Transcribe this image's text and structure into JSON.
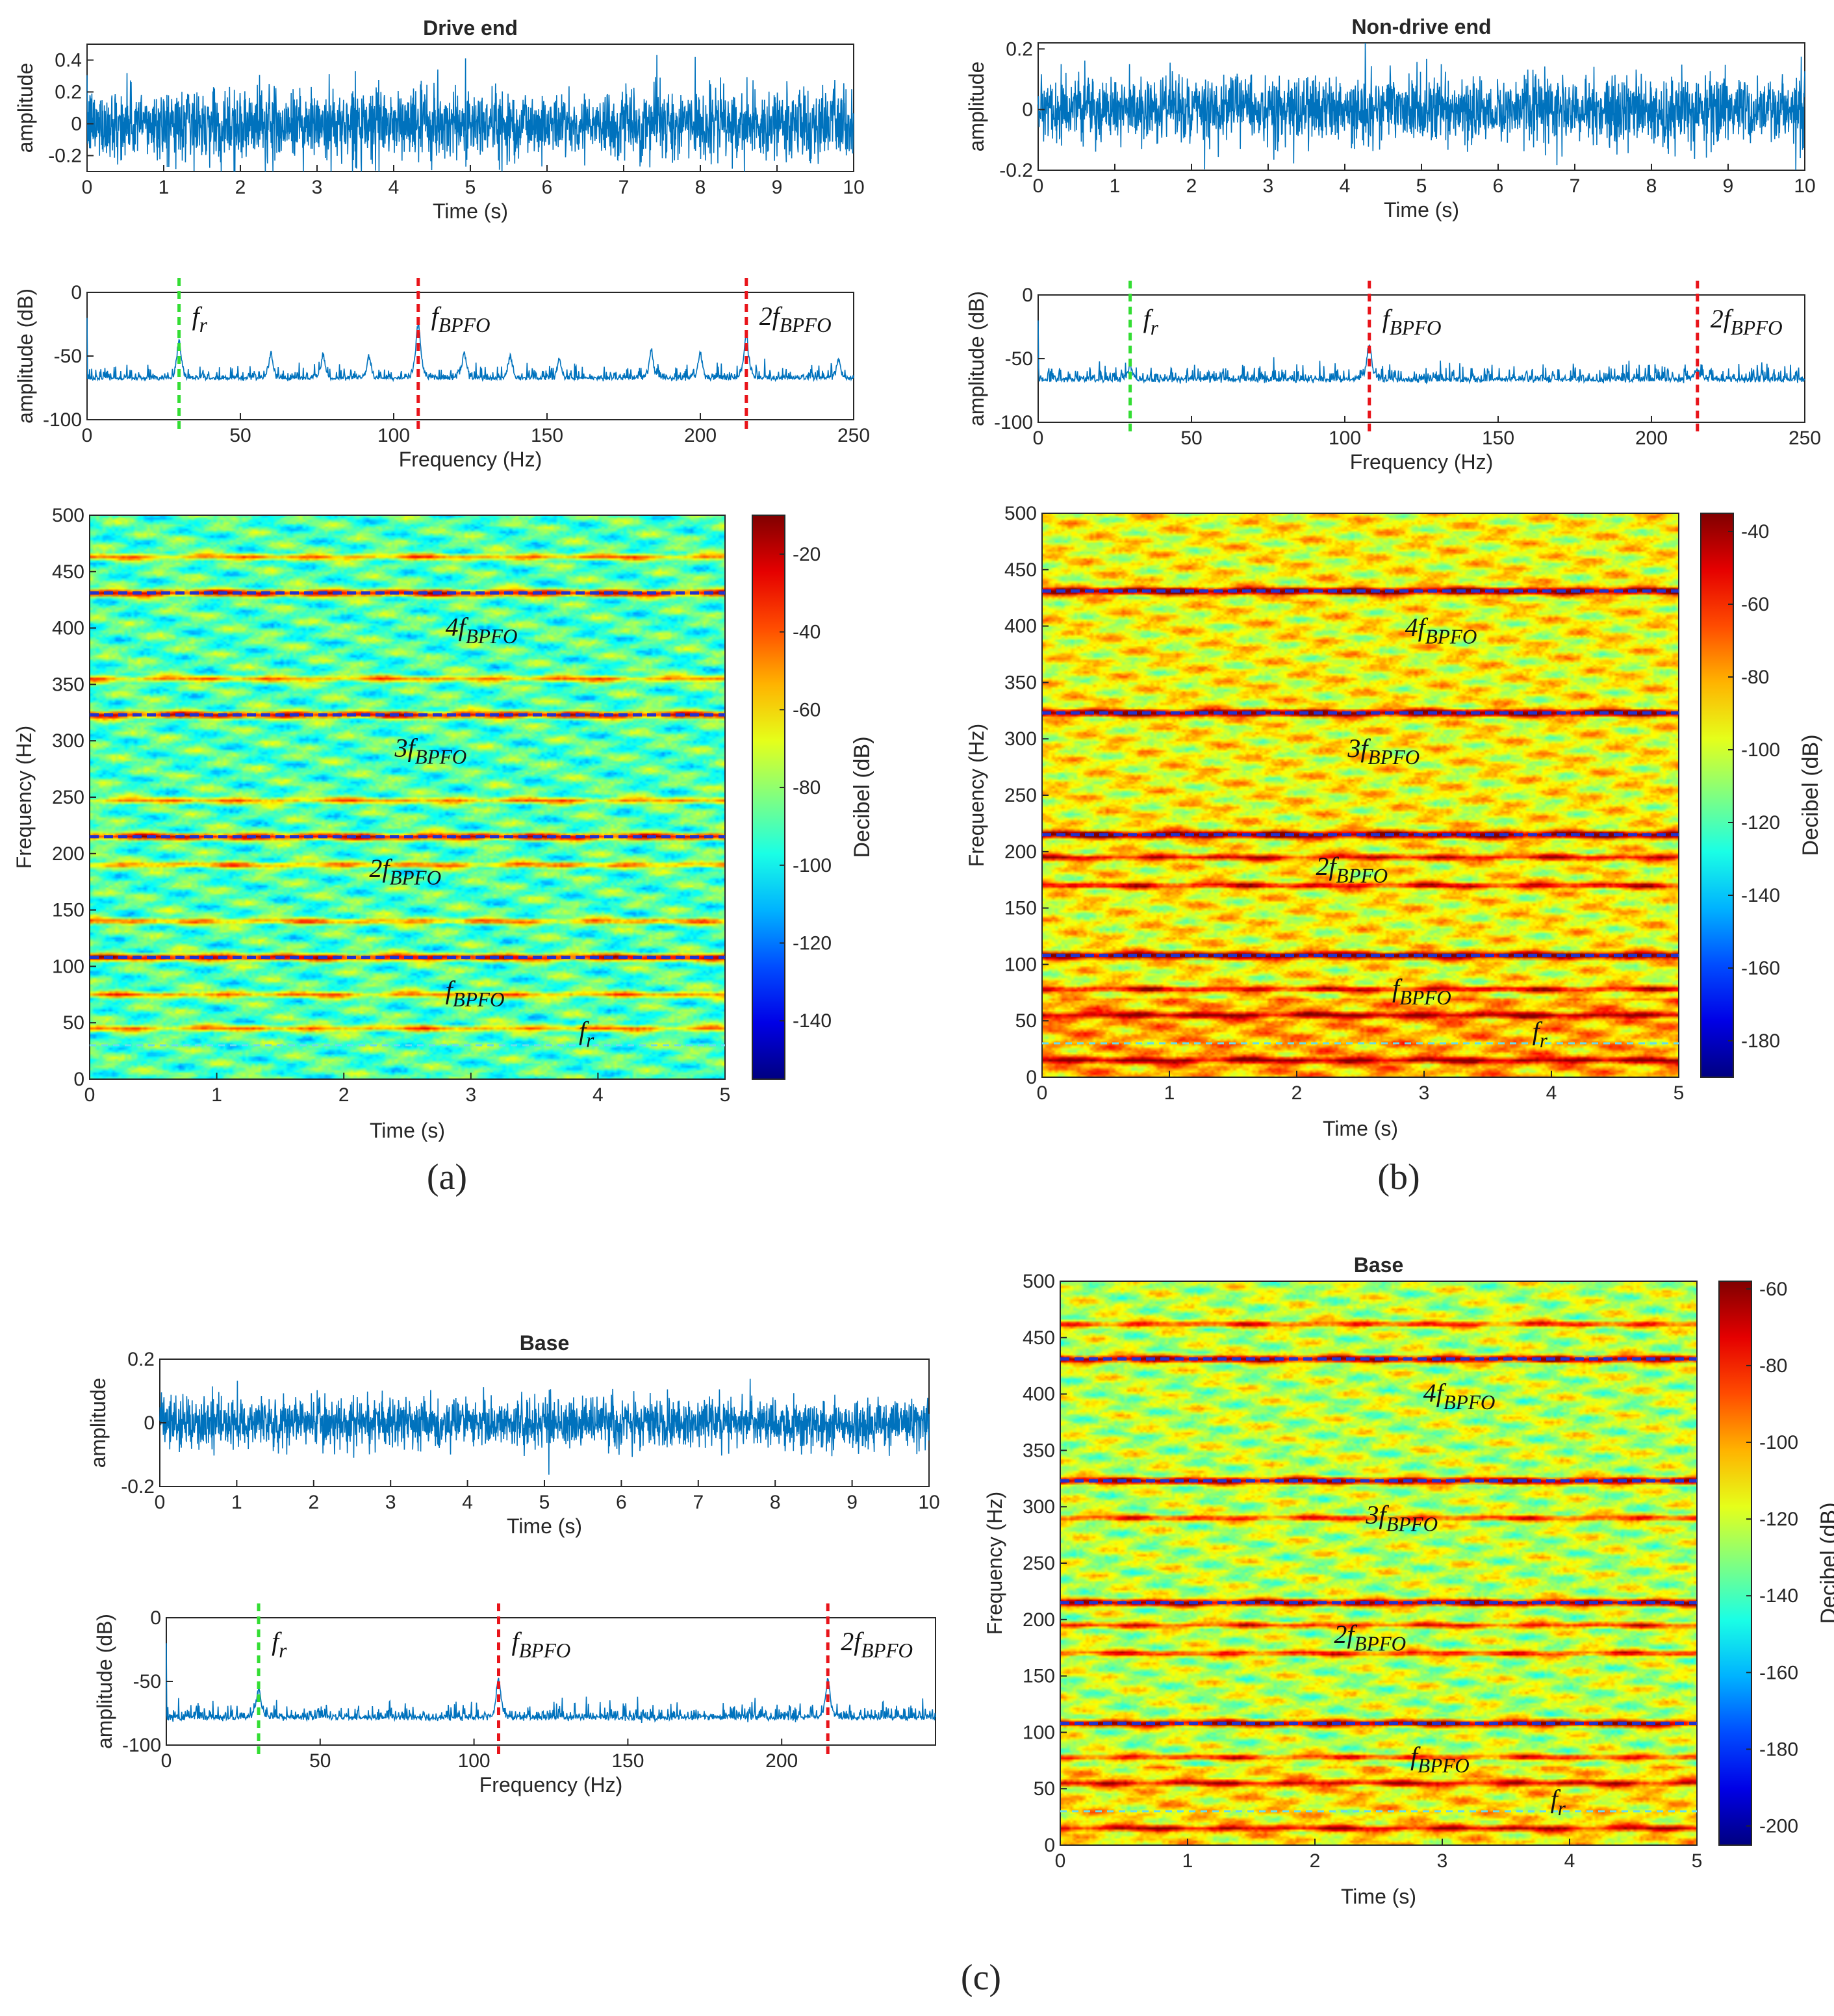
{
  "colors": {
    "signal": "#0072bd",
    "fr_marker": "#33dd33",
    "bpfo_marker": "#e8141a",
    "spec_line": "#2233cc",
    "fr_spec_line": "#66ddee",
    "axis": "#262626"
  },
  "panels": [
    {
      "id": "a",
      "label": "(a)",
      "time": {
        "title": "Drive end",
        "xlabel": "Time (s)",
        "ylabel": "amplitude",
        "xlim": [
          0,
          10
        ],
        "ylim": [
          -0.3,
          0.5
        ],
        "xticks": [
          "0",
          "1",
          "2",
          "3",
          "4",
          "5",
          "6",
          "7",
          "8",
          "9",
          "10"
        ],
        "yticks": [
          "-0.2",
          "0",
          "0.2",
          "0.4"
        ],
        "ytick_values": [
          -0.2,
          0,
          0.2,
          0.4
        ],
        "noise_amp": 0.2
      },
      "spectrum": {
        "title": "",
        "xlabel": "Frequency (Hz)",
        "ylabel": "amplitude (dB)",
        "xlim": [
          0,
          250
        ],
        "ylim": [
          -100,
          0
        ],
        "xticks": [
          "0",
          "50",
          "100",
          "150",
          "200",
          "250"
        ],
        "yticks": [
          "-100",
          "-50",
          "0"
        ],
        "ytick_values": [
          -100,
          -50,
          0
        ],
        "floor_db": -70,
        "markers": [
          {
            "freq": 30,
            "color": "fr",
            "label": "f",
            "sub": "r"
          },
          {
            "freq": 108,
            "color": "bpfo",
            "label": "f",
            "sub": "BPFO"
          },
          {
            "freq": 215,
            "color": "bpfo",
            "label": "2f",
            "sub": "BPFO"
          }
        ],
        "peaks": [
          {
            "freq": 108,
            "db": -22
          },
          {
            "freq": 215,
            "db": -33
          },
          {
            "freq": 30,
            "db": -38
          },
          {
            "freq": 60,
            "db": -48
          },
          {
            "freq": 77,
            "db": -48
          },
          {
            "freq": 92,
            "db": -50
          },
          {
            "freq": 123,
            "db": -48
          },
          {
            "freq": 138,
            "db": -50
          },
          {
            "freq": 154,
            "db": -52
          },
          {
            "freq": 184,
            "db": -45
          },
          {
            "freq": 200,
            "db": -48
          },
          {
            "freq": 245,
            "db": -52
          }
        ]
      },
      "spectrogram": {
        "title": "",
        "xlabel": "Time (s)",
        "ylabel": "Frequency (Hz)",
        "xlim": [
          0,
          5
        ],
        "ylim": [
          0,
          500
        ],
        "xticks": [
          "0",
          "1",
          "2",
          "3",
          "4",
          "5"
        ],
        "yticks": [
          "0",
          "50",
          "100",
          "150",
          "200",
          "250",
          "300",
          "350",
          "400",
          "450",
          "500"
        ],
        "colorbar": {
          "label": "Decibel (dB)",
          "range": [
            -155,
            -10
          ],
          "ticks": [
            "-140",
            "-120",
            "-100",
            "-80",
            "-60",
            "-40",
            "-20"
          ],
          "tick_values": [
            -140,
            -120,
            -100,
            -80,
            -60,
            -40,
            -20
          ]
        },
        "background": "cyan-green",
        "dashed_lines": [
          108,
          215,
          323,
          431
        ],
        "fr_line": 30,
        "bright_bands": [
          463,
          355,
          247,
          140,
          190,
          75,
          45
        ],
        "annotations": [
          {
            "label": "4f",
            "sub": "BPFO",
            "t": 2.8,
            "f": 400
          },
          {
            "label": "3f",
            "sub": "BPFO",
            "t": 2.4,
            "f": 293
          },
          {
            "label": "2f",
            "sub": "BPFO",
            "t": 2.2,
            "f": 186
          },
          {
            "label": "f",
            "sub": "BPFO",
            "t": 2.8,
            "f": 78
          },
          {
            "label": "f",
            "sub": "r",
            "t": 3.85,
            "f": 42
          }
        ]
      }
    },
    {
      "id": "b",
      "label": "(b)",
      "time": {
        "title": "Non-drive end",
        "xlabel": "Time (s)",
        "ylabel": "amplitude",
        "xlim": [
          0,
          10
        ],
        "ylim": [
          -0.2,
          0.22
        ],
        "xticks": [
          "0",
          "1",
          "2",
          "3",
          "4",
          "5",
          "6",
          "7",
          "8",
          "9",
          "10"
        ],
        "yticks": [
          "-0.2",
          "0",
          "0.2"
        ],
        "ytick_values": [
          -0.2,
          0,
          0.2
        ],
        "noise_amp": 0.1
      },
      "spectrum": {
        "title": "",
        "xlabel": "Frequency (Hz)",
        "ylabel": "amplitude (dB)",
        "xlim": [
          0,
          250
        ],
        "ylim": [
          -100,
          0
        ],
        "xticks": [
          "0",
          "50",
          "100",
          "150",
          "200",
          "250"
        ],
        "yticks": [
          "-100",
          "-50",
          "0"
        ],
        "ytick_values": [
          -100,
          -50,
          0
        ],
        "floor_db": -68,
        "markers": [
          {
            "freq": 30,
            "color": "fr",
            "label": "f",
            "sub": "r"
          },
          {
            "freq": 108,
            "color": "bpfo",
            "label": "f",
            "sub": "BPFO"
          },
          {
            "freq": 215,
            "color": "bpfo",
            "label": "2f",
            "sub": "BPFO"
          }
        ],
        "peaks": [
          {
            "freq": 108,
            "db": -38
          },
          {
            "freq": 30,
            "db": -55
          },
          {
            "freq": 215,
            "db": -58
          }
        ]
      },
      "spectrogram": {
        "title": "",
        "xlabel": "Time (s)",
        "ylabel": "Frequency (Hz)",
        "xlim": [
          0,
          5
        ],
        "ylim": [
          0,
          500
        ],
        "xticks": [
          "0",
          "1",
          "2",
          "3",
          "4",
          "5"
        ],
        "yticks": [
          "0",
          "50",
          "100",
          "150",
          "200",
          "250",
          "300",
          "350",
          "400",
          "450",
          "500"
        ],
        "colorbar": {
          "label": "Decibel (dB)",
          "range": [
            -190,
            -35
          ],
          "ticks": [
            "-180",
            "-160",
            "-140",
            "-120",
            "-100",
            "-80",
            "-60",
            "-40"
          ],
          "tick_values": [
            -180,
            -160,
            -140,
            -120,
            -100,
            -80,
            -60,
            -40
          ]
        },
        "background": "yellow-orange",
        "dashed_lines": [
          108,
          215,
          323,
          431
        ],
        "fr_line": 30,
        "bright_bands": [
          78,
          55,
          15,
          170,
          195
        ],
        "annotations": [
          {
            "label": "4f",
            "sub": "BPFO",
            "t": 2.85,
            "f": 398
          },
          {
            "label": "3f",
            "sub": "BPFO",
            "t": 2.4,
            "f": 291
          },
          {
            "label": "2f",
            "sub": "BPFO",
            "t": 2.15,
            "f": 186
          },
          {
            "label": "f",
            "sub": "BPFO",
            "t": 2.75,
            "f": 78
          },
          {
            "label": "f",
            "sub": "r",
            "t": 3.85,
            "f": 40
          }
        ]
      }
    },
    {
      "id": "c",
      "label": "(c)",
      "time": {
        "title": "Base",
        "xlabel": "Time (s)",
        "ylabel": "amplitude",
        "xlim": [
          0,
          10
        ],
        "ylim": [
          -0.2,
          0.2
        ],
        "xticks": [
          "0",
          "1",
          "2",
          "3",
          "4",
          "5",
          "6",
          "7",
          "8",
          "9",
          "10"
        ],
        "yticks": [
          "-0.2",
          "0",
          "0.2"
        ],
        "ytick_values": [
          -0.2,
          0,
          0.2
        ],
        "noise_amp": 0.07
      },
      "spectrum": {
        "title": "",
        "xlabel": "Frequency (Hz)",
        "ylabel": "amplitude (dB)",
        "xlim": [
          0,
          250
        ],
        "ylim": [
          -100,
          0
        ],
        "xticks": [
          "0",
          "50",
          "100",
          "150",
          "200"
        ],
        "yticks": [
          "-100",
          "-50",
          "0"
        ],
        "ytick_values": [
          -100,
          -50,
          0
        ],
        "floor_db": -80,
        "markers": [
          {
            "freq": 30,
            "color": "fr",
            "label": "f",
            "sub": "r"
          },
          {
            "freq": 108,
            "color": "bpfo",
            "label": "f",
            "sub": "BPFO"
          },
          {
            "freq": 215,
            "color": "bpfo",
            "label": "2f",
            "sub": "BPFO"
          }
        ],
        "peaks": [
          {
            "freq": 108,
            "db": -48
          },
          {
            "freq": 215,
            "db": -48
          },
          {
            "freq": 30,
            "db": -55
          }
        ]
      },
      "spectrogram": {
        "title": "Base",
        "xlabel": "Time (s)",
        "ylabel": "Frequency (Hz)",
        "xlim": [
          0,
          5
        ],
        "ylim": [
          0,
          500
        ],
        "xticks": [
          "0",
          "1",
          "2",
          "3",
          "4",
          "5"
        ],
        "yticks": [
          "0",
          "50",
          "100",
          "150",
          "200",
          "250",
          "300",
          "350",
          "400",
          "450",
          "500"
        ],
        "colorbar": {
          "label": "Decibel (dB)",
          "range": [
            -205,
            -58
          ],
          "ticks": [
            "-200",
            "-180",
            "-160",
            "-140",
            "-120",
            "-100",
            "-80",
            "-60"
          ],
          "tick_values": [
            -200,
            -180,
            -160,
            -140,
            -120,
            -100,
            -80,
            -60
          ]
        },
        "background": "yellow-green",
        "dashed_lines": [
          108,
          215,
          323,
          431
        ],
        "fr_line": 30,
        "bright_bands": [
          462,
          78,
          55,
          15,
          170,
          195,
          290
        ],
        "annotations": [
          {
            "label": "4f",
            "sub": "BPFO",
            "t": 2.85,
            "f": 400
          },
          {
            "label": "3f",
            "sub": "BPFO",
            "t": 2.4,
            "f": 292
          },
          {
            "label": "2f",
            "sub": "BPFO",
            "t": 2.15,
            "f": 186
          },
          {
            "label": "f",
            "sub": "BPFO",
            "t": 2.75,
            "f": 78
          },
          {
            "label": "f",
            "sub": "r",
            "t": 3.85,
            "f": 40
          }
        ]
      }
    }
  ]
}
